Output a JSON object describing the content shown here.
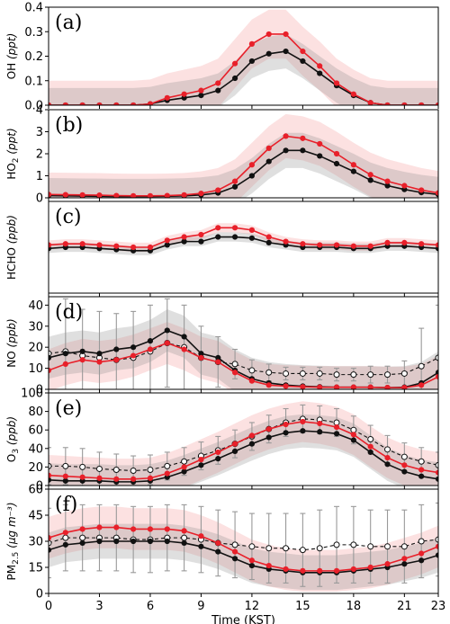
{
  "chart_data": {
    "type": "line",
    "x_label": "Time (KST)",
    "x_ticks": [
      0,
      3,
      6,
      9,
      12,
      15,
      18,
      21,
      23
    ],
    "x": [
      0,
      1,
      2,
      3,
      4,
      5,
      6,
      7,
      8,
      9,
      10,
      11,
      12,
      13,
      14,
      15,
      16,
      17,
      18,
      19,
      20,
      21,
      22,
      23
    ],
    "colors": {
      "red": "#e8202a",
      "black": "#111111",
      "obs": "#ffffff",
      "errorbar": "#999999"
    },
    "panels": [
      {
        "label": "(a)",
        "ylabel_main": "OH",
        "ylabel_unit": "(ppt)",
        "ylim": [
          0,
          0.4
        ],
        "yticks": [
          0.0,
          0.1,
          0.2,
          0.3,
          0.4
        ],
        "tick_format": "0.1",
        "band_red": 0.1,
        "band_black": 0.07,
        "series": [
          {
            "key": "red",
            "values": [
              0,
              0,
              0,
              0,
              0,
              0,
              0.005,
              0.03,
              0.045,
              0.06,
              0.09,
              0.17,
              0.25,
              0.29,
              0.29,
              0.22,
              0.16,
              0.09,
              0.045,
              0.01,
              0,
              0,
              0,
              0
            ]
          },
          {
            "key": "black",
            "values": [
              0,
              0,
              0,
              0,
              0,
              0,
              0.005,
              0.02,
              0.03,
              0.04,
              0.06,
              0.11,
              0.18,
              0.21,
              0.22,
              0.18,
              0.13,
              0.08,
              0.04,
              0.01,
              0,
              0,
              0,
              0
            ]
          }
        ]
      },
      {
        "label": "(b)",
        "ylabel_main": "HO",
        "ylabel_sub": "2",
        "ylabel_unit": "(ppt)",
        "ylim": [
          0,
          4
        ],
        "yticks": [
          0,
          1,
          2,
          3,
          4
        ],
        "tick_format": "1",
        "band_red": 1.0,
        "band_black": 0.8,
        "series": [
          {
            "key": "red",
            "values": [
              0.15,
              0.14,
              0.13,
              0.12,
              0.1,
              0.09,
              0.09,
              0.1,
              0.13,
              0.2,
              0.35,
              0.75,
              1.5,
              2.25,
              2.8,
              2.7,
              2.45,
              2.0,
              1.5,
              1.05,
              0.75,
              0.55,
              0.35,
              0.22
            ]
          },
          {
            "key": "black",
            "values": [
              0.1,
              0.09,
              0.08,
              0.07,
              0.06,
              0.06,
              0.06,
              0.07,
              0.09,
              0.13,
              0.22,
              0.5,
              1.0,
              1.65,
              2.15,
              2.15,
              1.9,
              1.55,
              1.2,
              0.8,
              0.55,
              0.38,
              0.24,
              0.15
            ]
          }
        ]
      },
      {
        "label": "(c)",
        "ylabel_main": "HCHO",
        "ylabel_unit": "(ppb)",
        "ylim": [
          0,
          4
        ],
        "yticks": [],
        "tick_format": "1",
        "band_red": 0.2,
        "band_black": 0.2,
        "series": [
          {
            "key": "red",
            "values": [
              2.1,
              2.15,
              2.15,
              2.1,
              2.05,
              2.0,
              2.0,
              2.3,
              2.45,
              2.55,
              2.85,
              2.85,
              2.75,
              2.45,
              2.25,
              2.15,
              2.1,
              2.1,
              2.05,
              2.05,
              2.2,
              2.2,
              2.15,
              2.1
            ]
          },
          {
            "key": "black",
            "values": [
              1.95,
              2.0,
              2.0,
              1.95,
              1.9,
              1.85,
              1.85,
              2.1,
              2.25,
              2.25,
              2.45,
              2.45,
              2.4,
              2.2,
              2.1,
              2.0,
              2.0,
              2.0,
              1.95,
              1.95,
              2.05,
              2.05,
              2.0,
              1.95
            ]
          }
        ]
      },
      {
        "label": "(d)",
        "ylabel_main": "NO",
        "ylabel_unit": "(ppb)",
        "ylim": [
          0,
          44
        ],
        "yticks": [
          0,
          10,
          20,
          30,
          40
        ],
        "tick_format": "1",
        "band_red": 10,
        "band_black": 10,
        "series": [
          {
            "key": "red",
            "values": [
              9,
              12,
              14,
              13,
              14,
              16,
              19,
              22,
              19,
              15,
              13,
              8,
              4,
              2,
              1.5,
              1.2,
              1,
              1,
              1,
              1,
              0.8,
              0.8,
              2,
              6
            ]
          },
          {
            "key": "black",
            "values": [
              15,
              17,
              18,
              17,
              19,
              20,
              23,
              28,
              25,
              17,
              15,
              9,
              5,
              3,
              2,
              1.5,
              1.2,
              1,
              1,
              1,
              0.8,
              1,
              3,
              8
            ]
          },
          {
            "key": "obs",
            "dashed": true,
            "values": [
              17,
              18,
              16,
              15,
              14,
              15,
              18,
              22,
              20,
              15,
              13,
              12,
              9,
              8,
              7.5,
              7.5,
              7.5,
              7,
              7,
              7,
              7,
              7.5,
              11,
              15
            ]
          }
        ],
        "errorbars": [
          30,
          25,
          22,
          22,
          22,
          22,
          22,
          21,
          20,
          15,
          12,
          7,
          5,
          4,
          3,
          3,
          3,
          3,
          3,
          4,
          4,
          6,
          18,
          25
        ]
      },
      {
        "label": "(e)",
        "ylabel_main": "O",
        "ylabel_sub": "3",
        "ylabel_unit": "(ppb)",
        "ylim": [
          0,
          100
        ],
        "yticks": [
          0,
          20,
          40,
          60,
          80,
          100
        ],
        "tick_format": "1",
        "band_red": 22,
        "band_black": 18,
        "series": [
          {
            "key": "red",
            "values": [
              11,
              10,
              9,
              8,
              7,
              7,
              8,
              13,
              20,
              28,
              36,
              45,
              54,
              61,
              66,
              69,
              67,
              63,
              55,
              42,
              30,
              22,
              17,
              14
            ]
          },
          {
            "key": "black",
            "values": [
              6,
              5,
              5,
              5,
              4,
              4,
              5,
              9,
              15,
              22,
              29,
              37,
              45,
              52,
              57,
              59,
              58,
              56,
              49,
              36,
              23,
              15,
              10,
              7
            ]
          },
          {
            "key": "obs",
            "dashed": true,
            "values": [
              21,
              21,
              20,
              18,
              17,
              16,
              17,
              21,
              26,
              32,
              38,
              45,
              53,
              61,
              68,
              72,
              71,
              68,
              60,
              50,
              39,
              31,
              26,
              22
            ]
          }
        ],
        "errorbars": [
          20,
          20,
          20,
          18,
          17,
          16,
          16,
          15,
          15,
          15,
          15,
          15,
          15,
          15,
          15,
          15,
          15,
          15,
          15,
          15,
          15,
          15,
          15,
          14
        ]
      },
      {
        "label": "(f)",
        "ylabel_main": "PM",
        "ylabel_sub": "2.5",
        "ylabel_unit": "(μg m⁻³)",
        "ylim": [
          0,
          60
        ],
        "yticks": [
          0,
          15,
          30,
          45,
          60
        ],
        "tick_format": "1",
        "band_red": 12,
        "band_black": 10,
        "series": [
          {
            "key": "red",
            "values": [
              32,
              35,
              37,
              38,
              38,
              37,
              37,
              37,
              36,
              33,
              29,
              24,
              19,
              16,
              14,
              13,
              13,
              13,
              14,
              15,
              17,
              20,
              23,
              27
            ]
          },
          {
            "key": "black",
            "values": [
              25,
              28,
              29,
              30,
              30,
              30,
              30,
              30,
              29,
              27,
              24,
              20,
              16,
              14,
              13,
              12,
              12,
              12,
              13,
              14,
              15,
              17,
              19,
              22
            ]
          },
          {
            "key": "obs",
            "dashed": true,
            "values": [
              29,
              32,
              32,
              32,
              32,
              31,
              31,
              32,
              32,
              31,
              29,
              28,
              27,
              26,
              26,
              25,
              26,
              28,
              28,
              27,
              27,
              27,
              30,
              31
            ]
          }
        ],
        "errorbars": [
          20,
          19,
          19,
          19,
          19,
          19,
          19,
          19,
          19,
          19,
          19,
          19,
          19,
          20,
          20,
          21,
          22,
          22,
          22,
          21,
          21,
          21,
          21,
          21
        ]
      }
    ]
  }
}
